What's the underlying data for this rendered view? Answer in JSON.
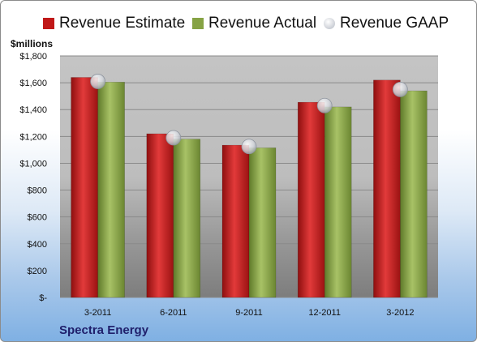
{
  "units_label": "$millions",
  "company": "Spectra Energy",
  "chart_data": {
    "type": "bar",
    "categories": [
      "3-2011",
      "6-2011",
      "9-2011",
      "12-2011",
      "3-2012"
    ],
    "series": [
      {
        "name": "Revenue Estimate",
        "kind": "bar",
        "color": "#c01818",
        "values": [
          1640,
          1220,
          1135,
          1455,
          1620
        ]
      },
      {
        "name": "Revenue Actual",
        "kind": "bar",
        "color": "#86a344",
        "values": [
          1605,
          1180,
          1115,
          1420,
          1540
        ]
      },
      {
        "name": "Revenue GAAP",
        "kind": "marker",
        "color": "#c8ccd4",
        "values": [
          1610,
          1190,
          1125,
          1430,
          1550
        ]
      }
    ],
    "ylim": [
      0,
      1800
    ],
    "yticks": [
      0,
      200,
      400,
      600,
      800,
      1000,
      1200,
      1400,
      1600,
      1800
    ],
    "ytick_labels": [
      "$-",
      "$200",
      "$400",
      "$600",
      "$800",
      "$1,000",
      "$1,200",
      "$1,400",
      "$1,600",
      "$1,800"
    ],
    "grid": true,
    "legend_position": "top"
  }
}
